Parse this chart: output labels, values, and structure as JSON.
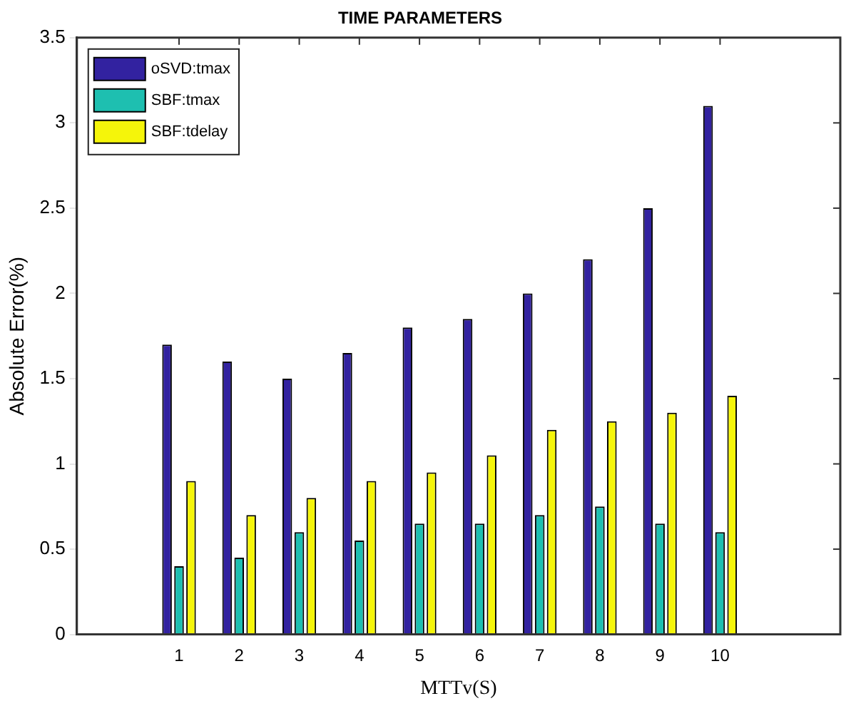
{
  "chart_data": {
    "type": "bar",
    "title": "TIME PARAMETERS",
    "xlabel": "MTTv(S)",
    "ylabel": "Absolute Error(%)",
    "x": [
      1,
      2,
      3,
      4,
      5,
      6,
      7,
      8,
      9,
      10
    ],
    "xlim": [
      -0.7,
      12
    ],
    "xticks": [
      1,
      2,
      3,
      4,
      5,
      6,
      7,
      8,
      9,
      10
    ],
    "ylim": [
      0,
      3.5
    ],
    "yticks": [
      0,
      0.5,
      1,
      1.5,
      2,
      2.5,
      3,
      3.5
    ],
    "grid": false,
    "legend": "top left",
    "series": [
      {
        "name": "oSVD:tmax",
        "color": "#3222a0",
        "values": [
          1.7,
          1.6,
          1.5,
          1.65,
          1.8,
          1.85,
          2.0,
          2.2,
          2.5,
          3.1
        ]
      },
      {
        "name": "SBF:tmax",
        "color": "#1ebfb0",
        "values": [
          0.4,
          0.45,
          0.6,
          0.55,
          0.65,
          0.65,
          0.7,
          0.75,
          0.65,
          0.6
        ]
      },
      {
        "name": "SBF:tdelay",
        "color": "#f5f50a",
        "values": [
          0.9,
          0.7,
          0.8,
          0.9,
          0.95,
          1.05,
          1.2,
          1.25,
          1.3,
          1.4
        ]
      }
    ]
  }
}
